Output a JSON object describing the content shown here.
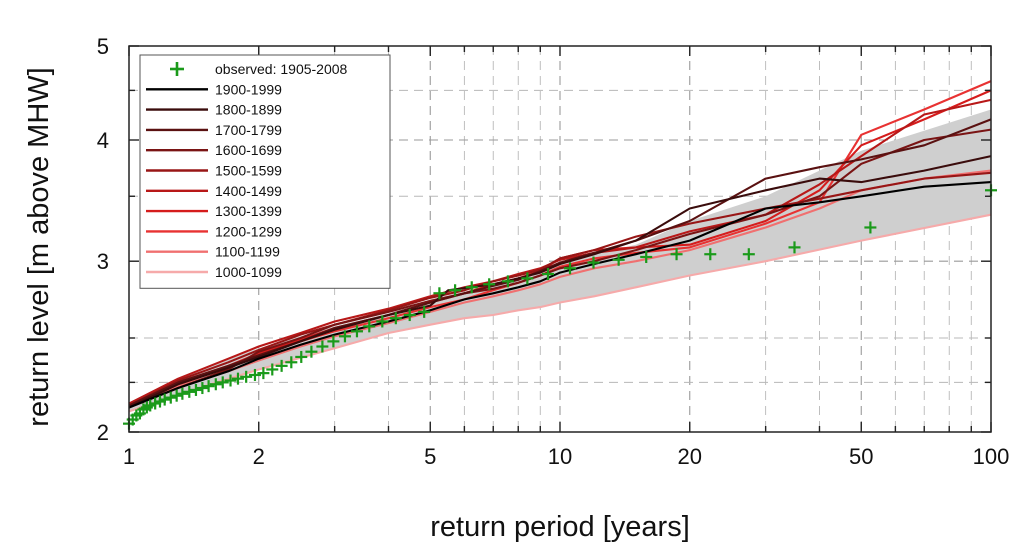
{
  "chart_data": {
    "type": "line",
    "xlabel": "return period [years]",
    "ylabel": "return level [m above MHW]",
    "x_scale": "log",
    "y_scale": "log",
    "xlim": [
      1,
      100
    ],
    "ylim": [
      2,
      5
    ],
    "x_ticks": [
      1,
      2,
      5,
      10,
      20,
      50,
      100
    ],
    "x_tick_labels": [
      "1",
      "2",
      "5",
      "10",
      "20",
      "50",
      "100"
    ],
    "y_ticks": [
      2,
      3,
      4,
      5
    ],
    "y_tick_labels": [
      "2",
      "3",
      "4",
      "5"
    ],
    "grid": true,
    "legend_position": "top-left",
    "legend": [
      {
        "label": "observed: 1905-2008",
        "color": "#1a9a1a",
        "marker": "plus"
      },
      {
        "label": "1900-1999",
        "color": "#000000"
      },
      {
        "label": "1800-1899",
        "color": "#3a0c0c"
      },
      {
        "label": "1700-1799",
        "color": "#5a1111"
      },
      {
        "label": "1600-1699",
        "color": "#7a1414"
      },
      {
        "label": "1500-1599",
        "color": "#981616"
      },
      {
        "label": "1400-1499",
        "color": "#b81818"
      },
      {
        "label": "1300-1399",
        "color": "#d51c1c"
      },
      {
        "label": "1200-1299",
        "color": "#e83232"
      },
      {
        "label": "1100-1199",
        "color": "#f07070"
      },
      {
        "label": "1000-1099",
        "color": "#f6aaaa"
      }
    ],
    "envelope": {
      "color": "#cfcfcf",
      "x": [
        1,
        1.5,
        2,
        3,
        4,
        5,
        6,
        7,
        8,
        9,
        10,
        12,
        15,
        20,
        30,
        50,
        100
      ],
      "lower": [
        2.1,
        2.23,
        2.32,
        2.44,
        2.53,
        2.58,
        2.62,
        2.64,
        2.67,
        2.69,
        2.72,
        2.76,
        2.82,
        2.9,
        3.0,
        3.15,
        3.35
      ],
      "upper": [
        2.14,
        2.33,
        2.44,
        2.57,
        2.65,
        2.74,
        2.79,
        2.84,
        2.88,
        2.93,
        2.99,
        3.05,
        3.12,
        3.3,
        3.5,
        3.9,
        4.3
      ]
    },
    "series": [
      {
        "name": "1900-1999",
        "color": "#000000",
        "x": [
          1,
          1.3,
          1.7,
          2,
          2.5,
          3,
          4,
          5,
          6,
          7,
          8,
          9,
          10,
          12,
          15,
          20,
          30,
          40,
          50,
          70,
          100
        ],
        "y": [
          2.12,
          2.22,
          2.31,
          2.38,
          2.46,
          2.52,
          2.6,
          2.67,
          2.74,
          2.78,
          2.82,
          2.86,
          2.92,
          2.98,
          3.05,
          3.15,
          3.4,
          3.45,
          3.5,
          3.58,
          3.62
        ]
      },
      {
        "name": "1800-1899",
        "color": "#3a0c0c",
        "x": [
          1,
          1.3,
          1.7,
          2,
          2.5,
          3,
          4,
          5,
          5.5,
          7,
          8,
          9,
          10,
          12,
          15,
          20,
          30,
          40,
          50,
          70,
          100
        ],
        "y": [
          2.12,
          2.24,
          2.33,
          2.39,
          2.48,
          2.55,
          2.64,
          2.7,
          2.8,
          2.84,
          2.88,
          2.92,
          2.98,
          3.05,
          3.15,
          3.4,
          3.55,
          3.65,
          3.62,
          3.72,
          3.85
        ]
      },
      {
        "name": "1700-1799",
        "color": "#5a1111",
        "x": [
          1,
          1.3,
          1.7,
          2,
          2.5,
          3,
          4,
          5,
          6,
          7,
          8,
          9,
          10,
          12,
          15,
          20,
          30,
          40,
          50,
          70,
          100
        ],
        "y": [
          2.13,
          2.25,
          2.34,
          2.4,
          2.48,
          2.56,
          2.64,
          2.72,
          2.78,
          2.83,
          2.87,
          2.93,
          2.99,
          3.06,
          3.15,
          3.3,
          3.65,
          3.75,
          3.82,
          3.95,
          4.2
        ]
      },
      {
        "name": "1600-1699",
        "color": "#7a1414",
        "x": [
          1,
          1.3,
          1.7,
          2,
          2.5,
          3,
          4,
          5,
          6,
          7,
          8,
          9,
          10,
          12,
          15,
          20,
          30,
          40,
          50,
          70,
          100
        ],
        "y": [
          2.12,
          2.22,
          2.32,
          2.42,
          2.5,
          2.58,
          2.66,
          2.73,
          2.78,
          2.81,
          2.85,
          2.9,
          2.95,
          3.0,
          3.08,
          3.2,
          3.35,
          3.5,
          3.78,
          4.0,
          4.1
        ]
      },
      {
        "name": "1500-1599",
        "color": "#981616",
        "x": [
          1,
          1.3,
          1.7,
          2,
          2.5,
          3,
          4,
          5,
          6,
          7,
          8,
          9,
          10,
          12,
          15,
          20,
          30,
          40,
          50,
          70,
          100
        ],
        "y": [
          2.13,
          2.26,
          2.36,
          2.43,
          2.52,
          2.58,
          2.67,
          2.75,
          2.8,
          2.86,
          2.9,
          2.94,
          3.02,
          3.08,
          3.18,
          3.28,
          3.4,
          3.48,
          3.55,
          3.65,
          3.7
        ]
      },
      {
        "name": "1400-1499",
        "color": "#b81818",
        "x": [
          1,
          1.3,
          1.7,
          2,
          2.5,
          3,
          4,
          5,
          6,
          7,
          8,
          9,
          10,
          12,
          15,
          20,
          30,
          40,
          50,
          70,
          100
        ],
        "y": [
          2.14,
          2.27,
          2.38,
          2.45,
          2.53,
          2.6,
          2.68,
          2.76,
          2.82,
          2.86,
          2.91,
          2.95,
          3.01,
          3.06,
          3.1,
          3.22,
          3.35,
          3.6,
          3.85,
          4.25,
          4.4
        ]
      },
      {
        "name": "1300-1399",
        "color": "#d51c1c",
        "x": [
          1,
          1.3,
          1.7,
          2,
          2.5,
          3,
          4,
          5,
          6,
          7,
          8,
          9,
          10,
          12,
          15,
          20,
          30,
          40,
          50,
          70,
          100
        ],
        "y": [
          2.13,
          2.25,
          2.34,
          2.41,
          2.49,
          2.56,
          2.64,
          2.72,
          2.78,
          2.84,
          2.88,
          2.93,
          3.02,
          3.08,
          3.1,
          3.12,
          3.3,
          3.55,
          3.95,
          4.2,
          4.5
        ]
      },
      {
        "name": "1200-1299",
        "color": "#e83232",
        "x": [
          1,
          1.3,
          1.7,
          2,
          2.5,
          3,
          4,
          5,
          6,
          7,
          8,
          9,
          10,
          12,
          15,
          20,
          30,
          40,
          50,
          70,
          100
        ],
        "y": [
          2.13,
          2.24,
          2.33,
          2.4,
          2.48,
          2.54,
          2.62,
          2.69,
          2.74,
          2.8,
          2.85,
          2.9,
          2.96,
          3.02,
          3.06,
          3.1,
          3.28,
          3.45,
          4.05,
          4.3,
          4.6
        ]
      },
      {
        "name": "1100-1199",
        "color": "#f07070",
        "x": [
          1,
          1.3,
          1.7,
          2,
          2.5,
          3,
          4,
          5,
          6,
          7,
          8,
          9,
          10,
          12,
          15,
          20,
          30,
          40,
          50,
          70,
          100
        ],
        "y": [
          2.12,
          2.23,
          2.31,
          2.37,
          2.45,
          2.51,
          2.59,
          2.66,
          2.72,
          2.76,
          2.8,
          2.84,
          2.89,
          2.95,
          3.0,
          3.08,
          3.25,
          3.4,
          3.55,
          3.65,
          3.72
        ]
      },
      {
        "name": "1000-1099",
        "color": "#f6aaaa",
        "x": [
          1,
          1.5,
          2,
          3,
          4,
          5,
          6,
          7,
          8,
          9,
          10,
          12,
          15,
          20,
          30,
          50,
          100
        ],
        "y": [
          2.1,
          2.23,
          2.32,
          2.44,
          2.53,
          2.58,
          2.62,
          2.64,
          2.67,
          2.69,
          2.72,
          2.76,
          2.82,
          2.9,
          3.0,
          3.15,
          3.35
        ]
      }
    ],
    "observed": {
      "name": "observed: 1905-2008",
      "color": "#1a9a1a",
      "x": [
        1.0,
        1.02,
        1.04,
        1.06,
        1.08,
        1.1,
        1.12,
        1.15,
        1.18,
        1.21,
        1.25,
        1.29,
        1.33,
        1.38,
        1.43,
        1.48,
        1.53,
        1.59,
        1.65,
        1.72,
        1.79,
        1.87,
        1.96,
        2.05,
        2.15,
        2.26,
        2.38,
        2.51,
        2.65,
        2.81,
        2.98,
        3.17,
        3.38,
        3.61,
        3.87,
        4.16,
        4.48,
        4.84,
        5.25,
        5.71,
        6.24,
        6.85,
        7.57,
        8.4,
        9.38,
        10.55,
        11.96,
        13.68,
        15.85,
        18.64,
        22.32,
        27.42,
        35.0,
        52.5,
        100.0
      ],
      "y": [
        2.04,
        2.06,
        2.08,
        2.09,
        2.11,
        2.12,
        2.13,
        2.14,
        2.15,
        2.16,
        2.17,
        2.18,
        2.19,
        2.2,
        2.21,
        2.22,
        2.23,
        2.24,
        2.25,
        2.26,
        2.27,
        2.28,
        2.29,
        2.3,
        2.32,
        2.34,
        2.36,
        2.39,
        2.42,
        2.45,
        2.48,
        2.51,
        2.54,
        2.57,
        2.6,
        2.62,
        2.64,
        2.66,
        2.78,
        2.8,
        2.82,
        2.84,
        2.86,
        2.88,
        2.91,
        2.95,
        2.99,
        3.01,
        3.03,
        3.05,
        3.05,
        3.05,
        3.1,
        3.25,
        3.55
      ]
    }
  }
}
